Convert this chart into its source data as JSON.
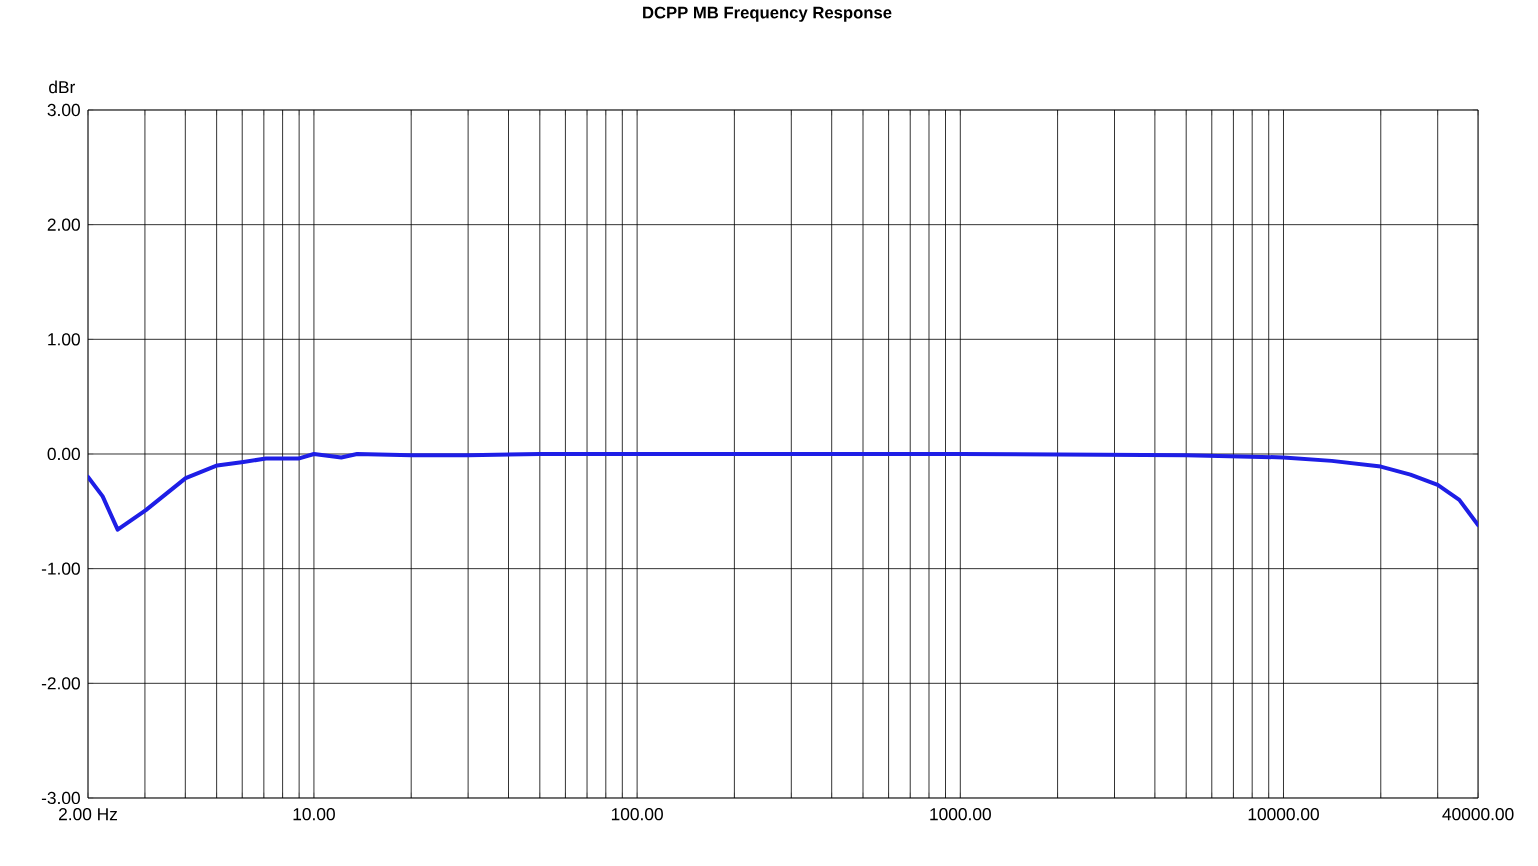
{
  "chart_data": {
    "type": "line",
    "title": "DCPP MB Frequency Response",
    "ylabel": "dBr",
    "log": "x",
    "grid": true,
    "line_style": "solid",
    "xlim": [
      2,
      40000
    ],
    "ylim": [
      -3,
      3
    ],
    "xticks": [
      {
        "value": 2,
        "label": "2.00 Hz"
      },
      {
        "value": 3,
        "label": null
      },
      {
        "value": 4,
        "label": null
      },
      {
        "value": 5,
        "label": null
      },
      {
        "value": 6,
        "label": null
      },
      {
        "value": 7,
        "label": null
      },
      {
        "value": 8,
        "label": null
      },
      {
        "value": 9,
        "label": null
      },
      {
        "value": 10,
        "label": "10.00"
      },
      {
        "value": 20,
        "label": null
      },
      {
        "value": 30,
        "label": null
      },
      {
        "value": 40,
        "label": null
      },
      {
        "value": 50,
        "label": null
      },
      {
        "value": 60,
        "label": null
      },
      {
        "value": 70,
        "label": null
      },
      {
        "value": 80,
        "label": null
      },
      {
        "value": 90,
        "label": null
      },
      {
        "value": 100,
        "label": "100.00"
      },
      {
        "value": 200,
        "label": null
      },
      {
        "value": 300,
        "label": null
      },
      {
        "value": 400,
        "label": null
      },
      {
        "value": 500,
        "label": null
      },
      {
        "value": 600,
        "label": null
      },
      {
        "value": 700,
        "label": null
      },
      {
        "value": 800,
        "label": null
      },
      {
        "value": 900,
        "label": null
      },
      {
        "value": 1000,
        "label": "1000.00"
      },
      {
        "value": 2000,
        "label": null
      },
      {
        "value": 3000,
        "label": null
      },
      {
        "value": 4000,
        "label": null
      },
      {
        "value": 5000,
        "label": null
      },
      {
        "value": 6000,
        "label": null
      },
      {
        "value": 7000,
        "label": null
      },
      {
        "value": 8000,
        "label": null
      },
      {
        "value": 9000,
        "label": null
      },
      {
        "value": 10000,
        "label": "10000.00"
      },
      {
        "value": 20000,
        "label": null
      },
      {
        "value": 30000,
        "label": null
      },
      {
        "value": 40000,
        "label": "40000.00"
      }
    ],
    "yticks": [
      {
        "value": -3,
        "label": "-3.00"
      },
      {
        "value": -2,
        "label": "-2.00"
      },
      {
        "value": -1,
        "label": "-1.00"
      },
      {
        "value": 0,
        "label": "0.00"
      },
      {
        "value": 1,
        "label": "1.00"
      },
      {
        "value": 2,
        "label": "2.00"
      },
      {
        "value": 3,
        "label": "3.00"
      }
    ],
    "x": [
      2,
      2.22,
      2.47,
      3.02,
      4.01,
      5.02,
      6.05,
      7.1,
      8.95,
      10,
      12.15,
      13.6,
      20,
      30,
      50,
      100,
      1000,
      5000,
      10000,
      14100,
      20000,
      24700,
      30000,
      35000,
      40000
    ],
    "series": [
      {
        "color": "#1e1ee6",
        "values": [
          -0.2,
          -0.37,
          -0.66,
          -0.49,
          -0.21,
          -0.1,
          -0.07,
          -0.04,
          -0.04,
          0,
          -0.03,
          0,
          -0.01,
          -0.01,
          0,
          0,
          0,
          -0.01,
          -0.03,
          -0.06,
          -0.11,
          -0.18,
          -0.27,
          -0.4,
          -0.62
        ]
      }
    ]
  }
}
